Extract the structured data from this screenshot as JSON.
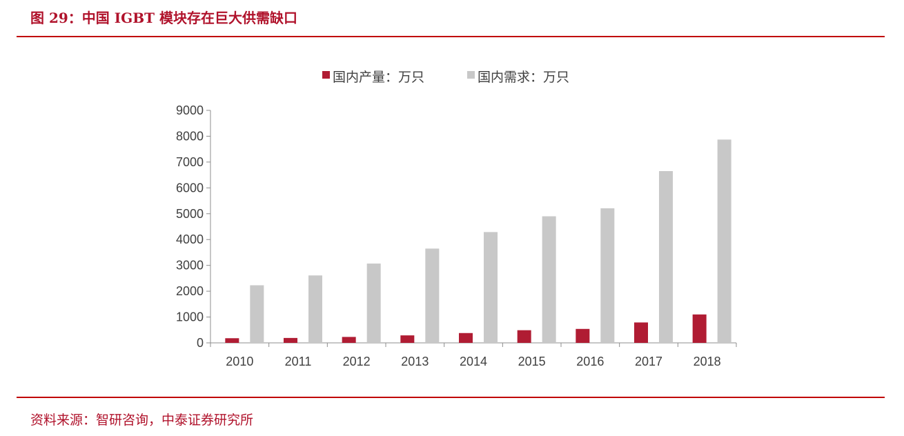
{
  "header": {
    "title": "图 29：中国 IGBT 模块存在巨大供需缺口"
  },
  "footer": {
    "source": "资料来源：智研咨询，中泰证券研究所"
  },
  "colors": {
    "accent": "#c00000",
    "production": "#b01c33",
    "demand": "#c8c8c8"
  },
  "chart_data": {
    "type": "bar",
    "title": "",
    "xlabel": "",
    "ylabel": "",
    "categories": [
      "2010",
      "2011",
      "2012",
      "2013",
      "2014",
      "2015",
      "2016",
      "2017",
      "2018"
    ],
    "series": [
      {
        "name": "国内产量：万只",
        "values": [
          180,
          190,
          230,
          290,
          380,
          490,
          540,
          790,
          1100
        ]
      },
      {
        "name": "国内需求：万只",
        "values": [
          2230,
          2610,
          3070,
          3650,
          4290,
          4900,
          5210,
          6650,
          7870
        ]
      }
    ],
    "ylim": [
      0,
      9000
    ],
    "yticks": [
      "0",
      "1000",
      "2000",
      "3000",
      "4000",
      "5000",
      "6000",
      "7000",
      "8000",
      "9000"
    ],
    "legend_position": "top-center",
    "grid": false
  }
}
